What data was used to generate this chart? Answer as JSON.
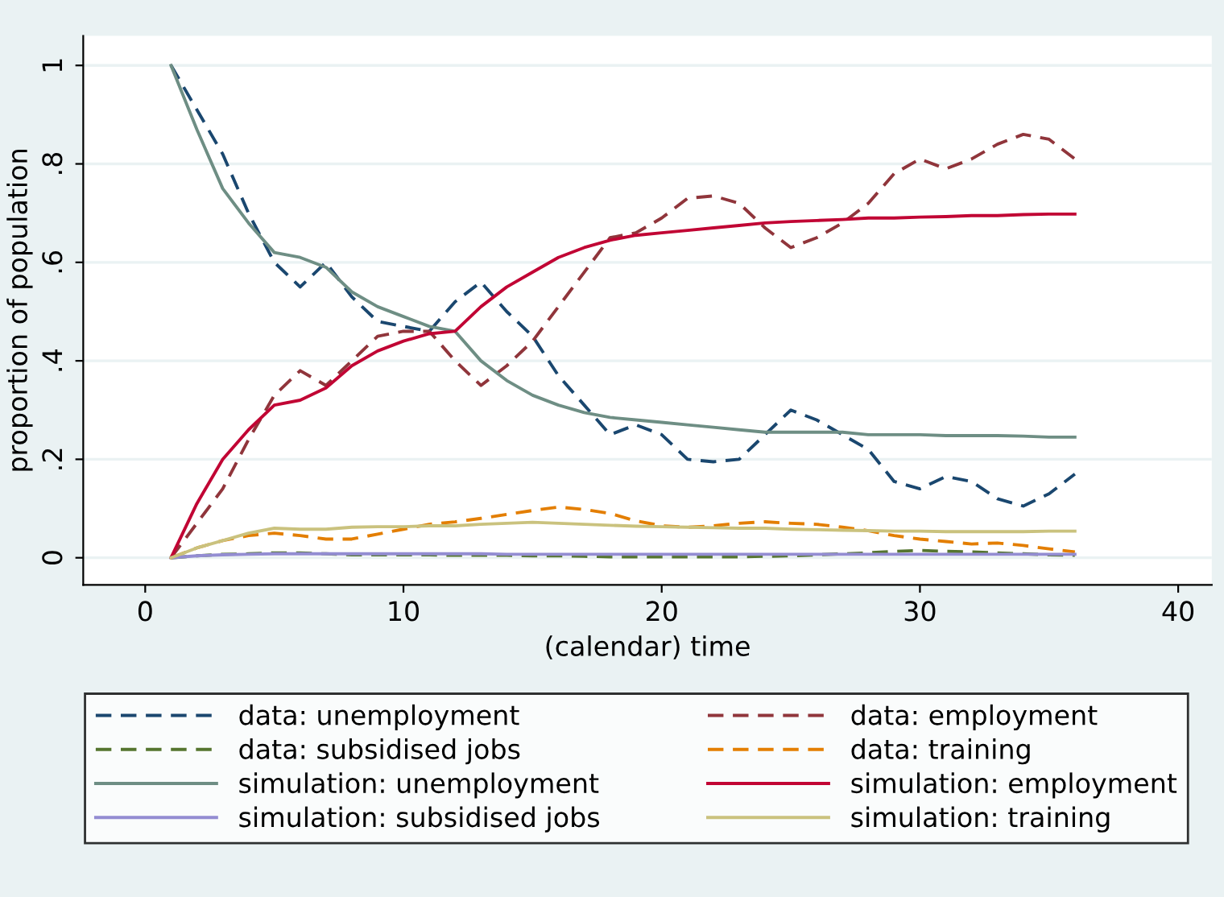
{
  "chart_data": {
    "type": "line",
    "xlabel": "(calendar) time",
    "ylabel": "proportion of population",
    "x": [
      1,
      2,
      3,
      4,
      5,
      6,
      7,
      8,
      9,
      10,
      11,
      12,
      13,
      14,
      15,
      16,
      17,
      18,
      19,
      20,
      21,
      22,
      23,
      24,
      25,
      26,
      27,
      28,
      29,
      30,
      31,
      32,
      33,
      34,
      35,
      36
    ],
    "xlim": [
      -2.4,
      41.3
    ],
    "xticks": [
      0,
      10,
      20,
      30,
      40
    ],
    "ylim": [
      -0.055,
      1.06
    ],
    "yticks": [
      0,
      {
        "value": 0.2,
        "label": ".2"
      },
      {
        "value": 0.4,
        "label": ".4"
      },
      {
        "value": 0.6,
        "label": ".6"
      },
      {
        "value": 0.8,
        "label": ".8"
      },
      1
    ],
    "grid": "y",
    "legend": "bottom",
    "series": [
      {
        "name": "data: unemployment",
        "color": "#1a476f",
        "line_style": "dashed",
        "values": [
          1.0,
          0.91,
          0.82,
          0.7,
          0.6,
          0.55,
          0.6,
          0.53,
          0.48,
          0.47,
          0.46,
          0.52,
          0.56,
          0.5,
          0.45,
          0.37,
          0.31,
          0.25,
          0.27,
          0.25,
          0.2,
          0.195,
          0.2,
          0.25,
          0.3,
          0.28,
          0.25,
          0.22,
          0.155,
          0.14,
          0.165,
          0.155,
          0.12,
          0.105,
          0.13,
          0.17
        ]
      },
      {
        "name": "data: employment",
        "color": "#90353b",
        "line_style": "dashed",
        "values": [
          0,
          0.07,
          0.14,
          0.24,
          0.33,
          0.38,
          0.35,
          0.4,
          0.45,
          0.46,
          0.46,
          0.4,
          0.35,
          0.39,
          0.44,
          0.51,
          0.58,
          0.65,
          0.66,
          0.69,
          0.73,
          0.735,
          0.72,
          0.67,
          0.63,
          0.65,
          0.68,
          0.72,
          0.78,
          0.81,
          0.79,
          0.81,
          0.84,
          0.86,
          0.85,
          0.81
        ]
      },
      {
        "name": "data: subsidised jobs",
        "color": "#55752f",
        "line_style": "dashed",
        "values": [
          0,
          0.004,
          0.007,
          0.008,
          0.01,
          0.01,
          0.008,
          0.006,
          0.006,
          0.006,
          0.006,
          0.005,
          0.005,
          0.005,
          0.004,
          0.004,
          0.003,
          0.002,
          0.002,
          0.002,
          0.002,
          0.002,
          0.002,
          0.003,
          0.004,
          0.006,
          0.008,
          0.01,
          0.013,
          0.015,
          0.013,
          0.012,
          0.01,
          0.008,
          0.006,
          0.005
        ]
      },
      {
        "name": "data: training",
        "color": "#e37e00",
        "line_style": "dashed",
        "values": [
          0,
          0.02,
          0.035,
          0.045,
          0.05,
          0.045,
          0.038,
          0.038,
          0.048,
          0.058,
          0.068,
          0.073,
          0.08,
          0.088,
          0.096,
          0.103,
          0.098,
          0.09,
          0.075,
          0.065,
          0.062,
          0.065,
          0.07,
          0.073,
          0.07,
          0.068,
          0.062,
          0.055,
          0.045,
          0.038,
          0.033,
          0.028,
          0.03,
          0.025,
          0.018,
          0.012
        ]
      },
      {
        "name": "simulation: unemployment",
        "color": "#6e8e84",
        "line_style": "solid",
        "values": [
          1.0,
          0.87,
          0.75,
          0.68,
          0.62,
          0.61,
          0.59,
          0.54,
          0.51,
          0.49,
          0.47,
          0.46,
          0.4,
          0.36,
          0.33,
          0.31,
          0.295,
          0.285,
          0.28,
          0.275,
          0.27,
          0.265,
          0.26,
          0.255,
          0.255,
          0.255,
          0.255,
          0.25,
          0.25,
          0.25,
          0.248,
          0.248,
          0.248,
          0.247,
          0.245,
          0.245
        ]
      },
      {
        "name": "simulation: employment",
        "color": "#c10534",
        "line_style": "solid",
        "values": [
          0,
          0.11,
          0.2,
          0.26,
          0.31,
          0.32,
          0.345,
          0.39,
          0.42,
          0.44,
          0.455,
          0.46,
          0.51,
          0.55,
          0.58,
          0.61,
          0.63,
          0.645,
          0.655,
          0.66,
          0.665,
          0.67,
          0.675,
          0.68,
          0.683,
          0.685,
          0.687,
          0.69,
          0.69,
          0.692,
          0.693,
          0.695,
          0.695,
          0.697,
          0.698,
          0.698
        ]
      },
      {
        "name": "simulation: subsidised jobs",
        "color": "#938dd2",
        "line_style": "solid",
        "values": [
          0,
          0.004,
          0.006,
          0.007,
          0.008,
          0.008,
          0.008,
          0.008,
          0.008,
          0.008,
          0.008,
          0.008,
          0.008,
          0.007,
          0.007,
          0.007,
          0.007,
          0.007,
          0.007,
          0.007,
          0.007,
          0.007,
          0.007,
          0.007,
          0.007,
          0.007,
          0.007,
          0.007,
          0.007,
          0.007,
          0.007,
          0.007,
          0.007,
          0.007,
          0.007,
          0.007
        ]
      },
      {
        "name": "simulation: training",
        "color": "#cac27e",
        "line_style": "solid",
        "values": [
          0,
          0.02,
          0.035,
          0.05,
          0.06,
          0.058,
          0.058,
          0.062,
          0.063,
          0.063,
          0.065,
          0.065,
          0.068,
          0.07,
          0.072,
          0.07,
          0.068,
          0.066,
          0.064,
          0.063,
          0.062,
          0.061,
          0.06,
          0.06,
          0.058,
          0.057,
          0.056,
          0.055,
          0.054,
          0.054,
          0.053,
          0.053,
          0.053,
          0.053,
          0.054,
          0.054
        ]
      }
    ]
  }
}
